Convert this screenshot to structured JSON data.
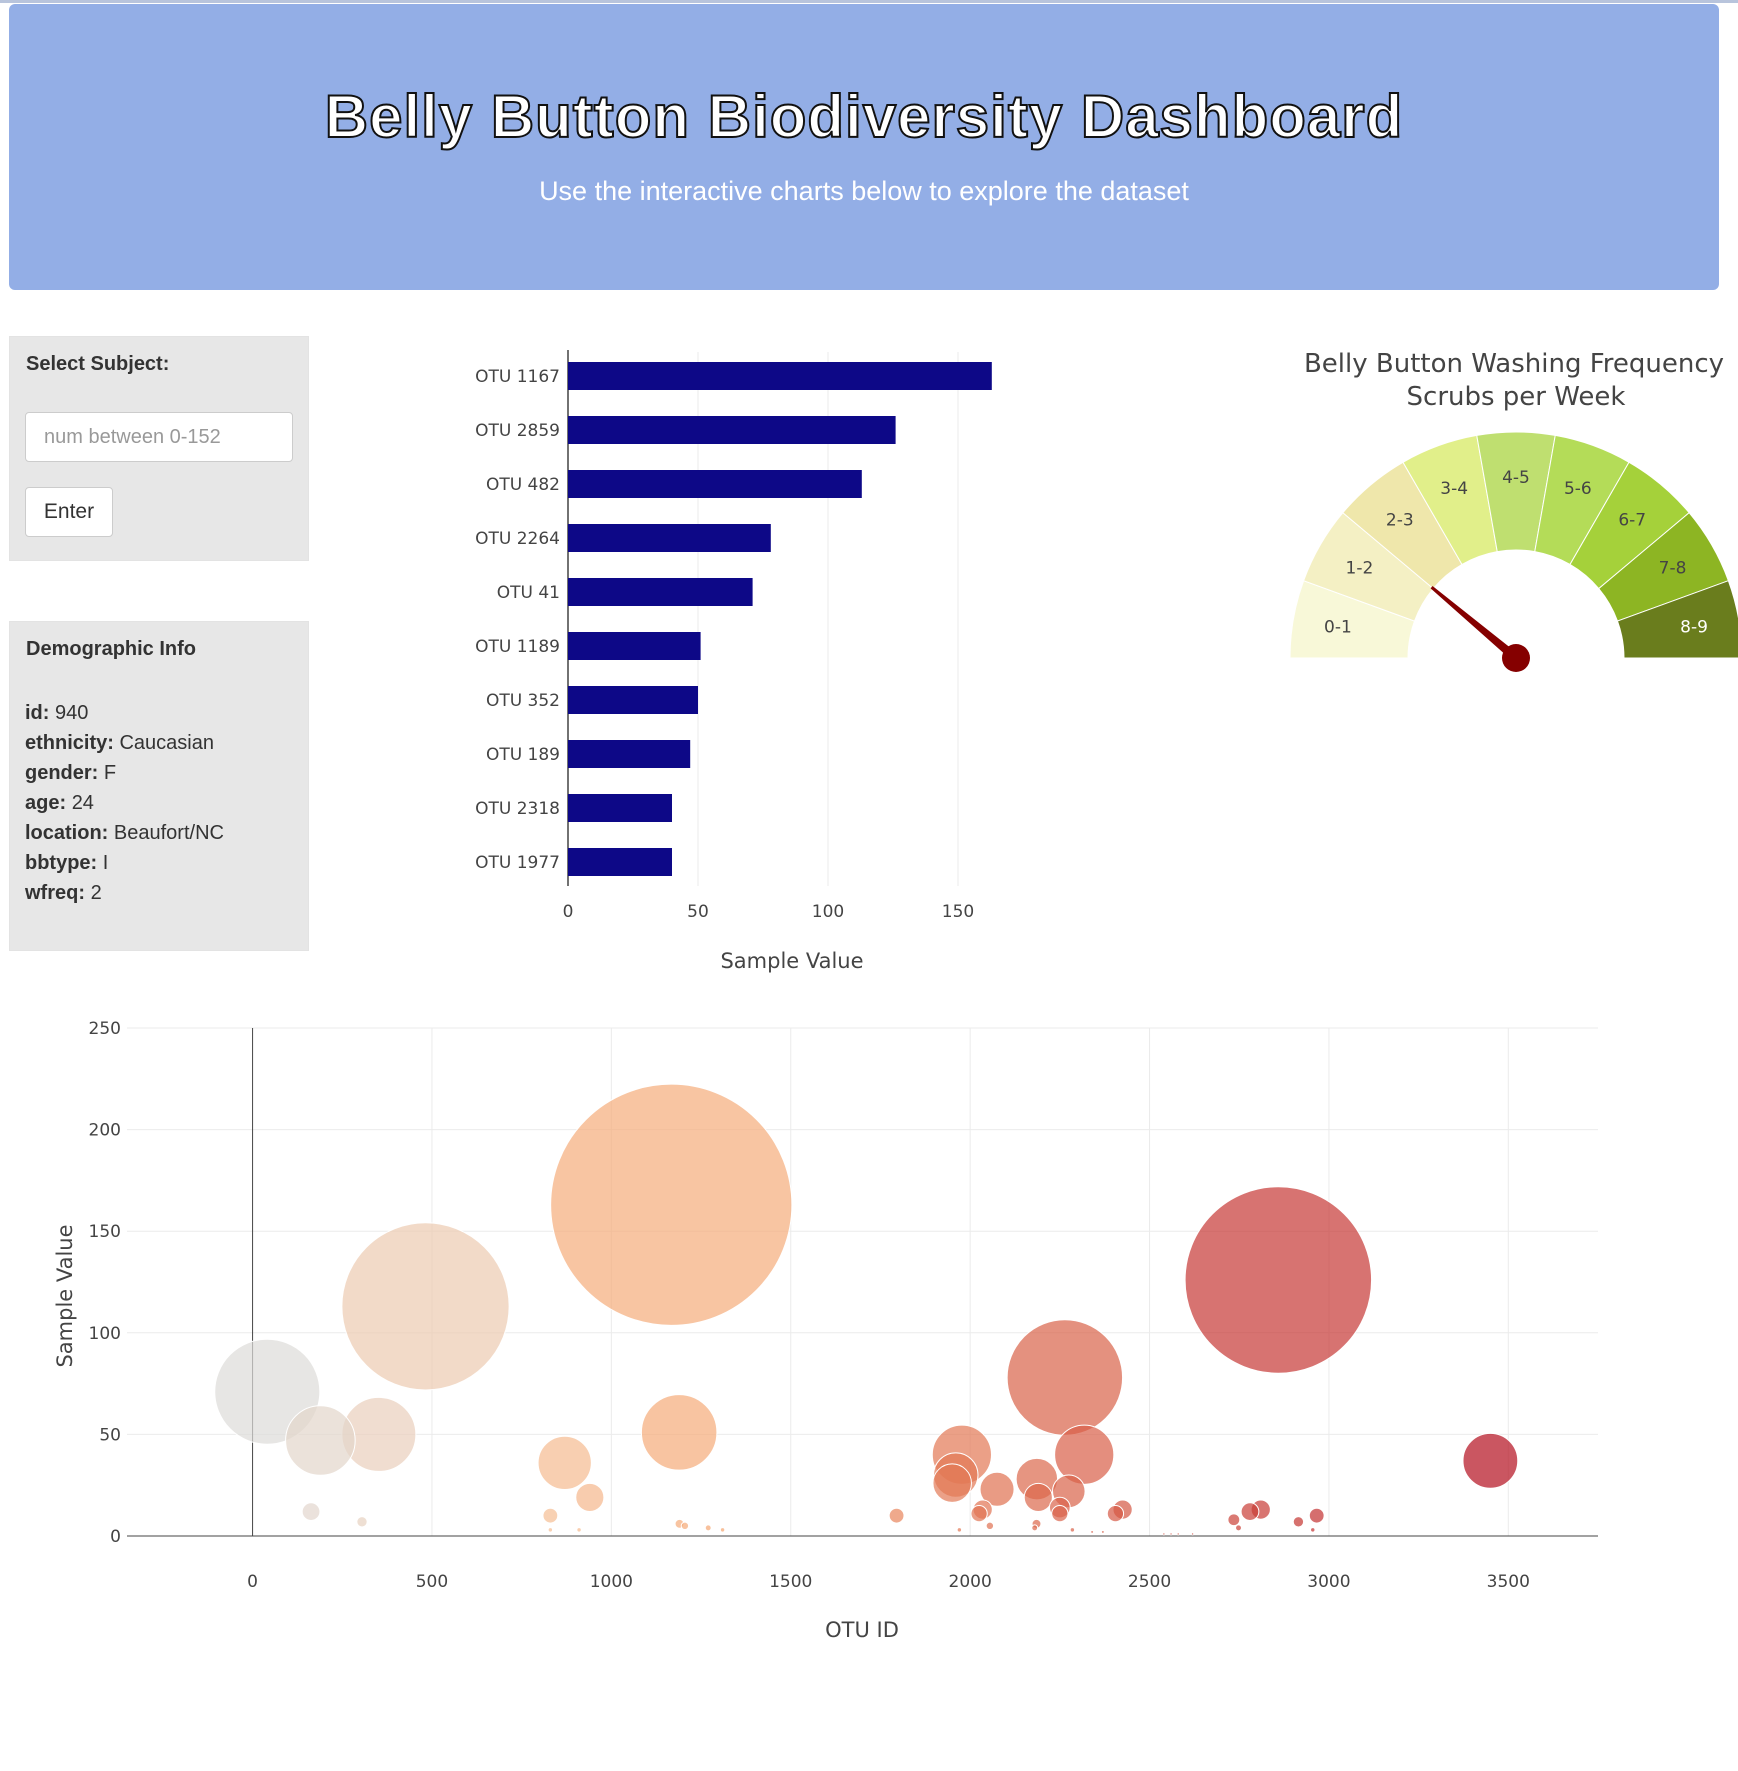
{
  "header": {
    "title": "Belly Button Biodiversity Dashboard",
    "subtitle": "Use the interactive charts below to explore the dataset"
  },
  "selector": {
    "label": "Select Subject:",
    "placeholder": "num between 0-152",
    "button_label": "Enter"
  },
  "demographics": {
    "title": "Demographic Info",
    "rows": [
      {
        "key": "id:",
        "value": "940"
      },
      {
        "key": "ethnicity:",
        "value": "Caucasian"
      },
      {
        "key": "gender:",
        "value": "F"
      },
      {
        "key": "age:",
        "value": "24"
      },
      {
        "key": "location:",
        "value": "Beaufort/NC"
      },
      {
        "key": "bbtype:",
        "value": "I"
      },
      {
        "key": "wfreq:",
        "value": "2"
      }
    ]
  },
  "colors": {
    "bar": "#0d0887",
    "gauge_needle": "#850000",
    "gauge_steps": [
      "#f8f8d8",
      "#f4f0c4",
      "#efe7ab",
      "#e1ef8a",
      "#bfdf70",
      "#b4dc58",
      "#a5d13a",
      "#8db523",
      "#6a7d1d"
    ],
    "header_bg": "#93aee6"
  },
  "chart_data": [
    {
      "type": "bar",
      "orientation": "horizontal",
      "categories": [
        "OTU 1167",
        "OTU 2859",
        "OTU 482",
        "OTU 2264",
        "OTU 41",
        "OTU 1189",
        "OTU 352",
        "OTU 189",
        "OTU 2318",
        "OTU 1977"
      ],
      "values": [
        163,
        126,
        113,
        78,
        71,
        51,
        50,
        47,
        40,
        40
      ],
      "xlabel": "Sample Value",
      "xticks": [
        0,
        50,
        100,
        150
      ],
      "xlim": [
        0,
        170
      ],
      "grid": true
    },
    {
      "type": "gauge",
      "title": "Belly Button Washing Frequency",
      "subtitle": "Scrubs per Week",
      "range": [
        0,
        9
      ],
      "steps": [
        "0-1",
        "1-2",
        "2-3",
        "3-4",
        "4-5",
        "5-6",
        "6-7",
        "7-8",
        "8-9"
      ],
      "value": 2
    },
    {
      "type": "scatter",
      "subtype": "bubble",
      "xlabel": "OTU ID",
      "ylabel": "Sample Value",
      "xlim": [
        -350,
        3750
      ],
      "ylim": [
        0,
        250
      ],
      "xticks": [
        0,
        500,
        1000,
        1500,
        2000,
        2500,
        3000,
        3500
      ],
      "yticks": [
        0,
        50,
        100,
        150,
        200,
        250
      ],
      "colorscale_range": [
        0,
        3500
      ],
      "grid": true,
      "points": [
        {
          "x": 1167,
          "y": 163
        },
        {
          "x": 2859,
          "y": 126
        },
        {
          "x": 482,
          "y": 113
        },
        {
          "x": 2264,
          "y": 78
        },
        {
          "x": 41,
          "y": 71
        },
        {
          "x": 1189,
          "y": 51
        },
        {
          "x": 352,
          "y": 50
        },
        {
          "x": 189,
          "y": 47
        },
        {
          "x": 2318,
          "y": 40
        },
        {
          "x": 1977,
          "y": 40
        },
        {
          "x": 3450,
          "y": 37
        },
        {
          "x": 870,
          "y": 36
        },
        {
          "x": 1960,
          "y": 30
        },
        {
          "x": 2186,
          "y": 28
        },
        {
          "x": 1950,
          "y": 26
        },
        {
          "x": 2075,
          "y": 23
        },
        {
          "x": 2275,
          "y": 22
        },
        {
          "x": 940,
          "y": 19
        },
        {
          "x": 2190,
          "y": 19
        },
        {
          "x": 2250,
          "y": 14
        },
        {
          "x": 2035,
          "y": 13
        },
        {
          "x": 2425,
          "y": 13
        },
        {
          "x": 2810,
          "y": 13
        },
        {
          "x": 163,
          "y": 12
        },
        {
          "x": 2780,
          "y": 12
        },
        {
          "x": 2405,
          "y": 11
        },
        {
          "x": 2025,
          "y": 11
        },
        {
          "x": 2250,
          "y": 11
        },
        {
          "x": 2966,
          "y": 10
        },
        {
          "x": 1795,
          "y": 10
        },
        {
          "x": 830,
          "y": 10
        },
        {
          "x": 2735,
          "y": 8
        },
        {
          "x": 2915,
          "y": 7
        },
        {
          "x": 305,
          "y": 7
        },
        {
          "x": 1190,
          "y": 6
        },
        {
          "x": 2185,
          "y": 6
        },
        {
          "x": 1205,
          "y": 5
        },
        {
          "x": 2055,
          "y": 5
        },
        {
          "x": 1270,
          "y": 4
        },
        {
          "x": 2748,
          "y": 4
        },
        {
          "x": 2180,
          "y": 4
        },
        {
          "x": 2955,
          "y": 3
        },
        {
          "x": 1310,
          "y": 3
        },
        {
          "x": 2285,
          "y": 3
        },
        {
          "x": 830,
          "y": 3
        },
        {
          "x": 910,
          "y": 3
        },
        {
          "x": 1970,
          "y": 3
        },
        {
          "x": 2340,
          "y": 2
        },
        {
          "x": 2370,
          "y": 2
        },
        {
          "x": 2540,
          "y": 1
        },
        {
          "x": 2560,
          "y": 1
        },
        {
          "x": 2580,
          "y": 1
        },
        {
          "x": 2620,
          "y": 1
        }
      ]
    }
  ]
}
